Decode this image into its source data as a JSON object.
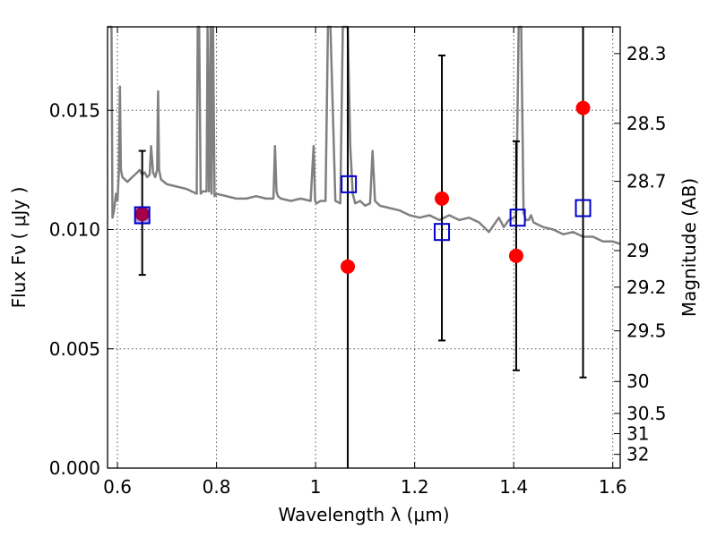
{
  "chart_data": {
    "type": "scatter",
    "xlabel": "Wavelength  λ (μm)",
    "ylabel": "Flux  Fν  ( μJy )",
    "ylabel_right": "Magnitude (AB)",
    "xlim": [
      0.58,
      1.615
    ],
    "ylim": [
      0.0,
      0.0185
    ],
    "grid": true,
    "x_ticks": [
      0.6,
      0.8,
      1.0,
      1.2,
      1.4,
      1.6
    ],
    "x_tick_labels": [
      "0.6",
      "0.8",
      "1",
      "1.2",
      "1.4",
      "1.6"
    ],
    "y_ticks": [
      0.0,
      0.005,
      0.01,
      0.015
    ],
    "y_tick_labels": [
      "0.000",
      "0.005",
      "0.010",
      "0.015"
    ],
    "mag_ticks": [
      28.3,
      28.5,
      28.7,
      29,
      29.2,
      29.5,
      30,
      30.5,
      31,
      32
    ],
    "mag_tick_labels": [
      "28.3",
      "28.5",
      "28.7",
      "29",
      "29.2",
      "29.5",
      "30",
      "30.5",
      "31",
      "32"
    ],
    "colors": {
      "spectrum": "#808080",
      "observed": "#ff0000",
      "model": "#0000cc",
      "errorbar": "#000000",
      "grid": "#555555"
    },
    "spectrum": {
      "x": [
        0.58,
        0.588,
        0.59,
        0.593,
        0.597,
        0.6,
        0.603,
        0.605,
        0.607,
        0.61,
        0.62,
        0.63,
        0.64,
        0.645,
        0.65,
        0.655,
        0.66,
        0.665,
        0.668,
        0.672,
        0.676,
        0.68,
        0.682,
        0.684,
        0.688,
        0.7,
        0.72,
        0.74,
        0.76,
        0.762,
        0.765,
        0.768,
        0.772,
        0.78,
        0.782,
        0.785,
        0.788,
        0.79,
        0.793,
        0.796,
        0.8,
        0.82,
        0.84,
        0.86,
        0.88,
        0.9,
        0.915,
        0.918,
        0.921,
        0.924,
        0.93,
        0.95,
        0.97,
        0.99,
        0.996,
        0.999,
        1.002,
        1.01,
        1.02,
        1.025,
        1.03,
        1.04,
        1.05,
        1.055,
        1.065,
        1.07,
        1.075,
        1.08,
        1.09,
        1.1,
        1.11,
        1.115,
        1.12,
        1.125,
        1.13,
        1.15,
        1.17,
        1.19,
        1.21,
        1.23,
        1.25,
        1.27,
        1.29,
        1.31,
        1.33,
        1.35,
        1.37,
        1.38,
        1.39,
        1.4,
        1.405,
        1.41,
        1.415,
        1.42,
        1.425,
        1.43,
        1.435,
        1.44,
        1.45,
        1.46,
        1.48,
        1.5,
        1.52,
        1.54,
        1.56,
        1.58,
        1.6,
        1.615
      ],
      "y": [
        0.0185,
        0.0185,
        0.0105,
        0.0108,
        0.0115,
        0.0112,
        0.0125,
        0.016,
        0.0125,
        0.0122,
        0.012,
        0.0122,
        0.0124,
        0.0125,
        0.0123,
        0.0124,
        0.0122,
        0.0123,
        0.0135,
        0.0124,
        0.0122,
        0.0125,
        0.0158,
        0.0125,
        0.0121,
        0.0119,
        0.0118,
        0.0117,
        0.0115,
        0.0185,
        0.0185,
        0.0115,
        0.0116,
        0.0116,
        0.0185,
        0.0116,
        0.0185,
        0.0115,
        0.0185,
        0.0114,
        0.0115,
        0.0114,
        0.0113,
        0.0113,
        0.0114,
        0.0113,
        0.0113,
        0.0135,
        0.0116,
        0.0114,
        0.0113,
        0.0112,
        0.0113,
        0.0112,
        0.0135,
        0.0112,
        0.0111,
        0.0112,
        0.0112,
        0.0185,
        0.0185,
        0.0112,
        0.0111,
        0.0185,
        0.0185,
        0.0135,
        0.0115,
        0.0111,
        0.0112,
        0.011,
        0.0111,
        0.0133,
        0.0112,
        0.0111,
        0.011,
        0.0109,
        0.0108,
        0.0106,
        0.0105,
        0.0106,
        0.0104,
        0.0106,
        0.0104,
        0.0105,
        0.0103,
        0.0099,
        0.0105,
        0.0101,
        0.0104,
        0.0105,
        0.0106,
        0.0185,
        0.0185,
        0.0107,
        0.0104,
        0.0104,
        0.0106,
        0.0103,
        0.0102,
        0.0101,
        0.01,
        0.0098,
        0.0099,
        0.0097,
        0.0097,
        0.0095,
        0.0095,
        0.0094
      ]
    },
    "observed": {
      "x": [
        0.65,
        1.065,
        1.255,
        1.405,
        1.54
      ],
      "y": [
        0.01065,
        0.00845,
        0.0113,
        0.0089,
        0.0151
      ],
      "err_low": [
        0.0081,
        0.0,
        0.00535,
        0.0041,
        0.0038
      ],
      "err_high": [
        0.0133,
        0.0185,
        0.0173,
        0.0137,
        0.0185
      ]
    },
    "model": {
      "x": [
        0.65,
        1.067,
        1.255,
        1.408,
        1.54
      ],
      "y": [
        0.0106,
        0.0119,
        0.0099,
        0.0105,
        0.0109
      ]
    }
  }
}
